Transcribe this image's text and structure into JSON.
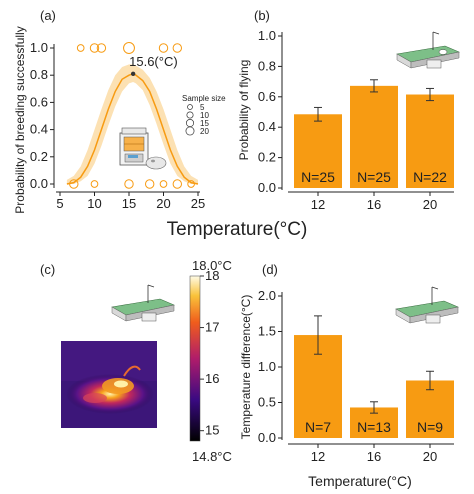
{
  "colors": {
    "orange": "#f79b12",
    "orange_light": "#fbd79a",
    "axis": "#222222"
  },
  "panels": {
    "a": {
      "label": "(a)"
    },
    "b": {
      "label": "(b)"
    },
    "c": {
      "label": "(c)"
    },
    "d": {
      "label": "(d)"
    }
  },
  "shared": {
    "top_xlabel": "Temperature(°C)"
  },
  "colorbar": {
    "max_label": "18.0°C",
    "min_label": "14.8°C",
    "ticks": [
      "18",
      "17",
      "16",
      "15"
    ],
    "tick_values": [
      18,
      17,
      16,
      15
    ],
    "range": [
      14.8,
      18.0
    ]
  },
  "icons": [
    "incubator-icon",
    "flight-mill-icon",
    "thermal-image",
    "flight-mill-icon"
  ],
  "chart_data": [
    {
      "panel": "a",
      "type": "line",
      "ylabel": "Probability of breeding successfully",
      "xlabel": "Temperature(°C)",
      "xlim": [
        5,
        25
      ],
      "ylim": [
        0,
        1
      ],
      "xticks": [
        5,
        10,
        15,
        20,
        25
      ],
      "yticks": [
        "0.0",
        "0.2",
        "0.4",
        "0.6",
        "0.8",
        "1.0"
      ],
      "yticks_values": [
        0.0,
        0.2,
        0.4,
        0.6,
        0.8,
        1.0
      ],
      "peak": {
        "x": 15.6,
        "y": 0.81,
        "label": "15.6(°C)"
      },
      "fit": {
        "x": [
          6,
          7,
          8,
          9,
          10,
          11,
          12,
          13,
          14,
          15,
          15.6,
          16,
          17,
          18,
          19,
          20,
          21,
          22,
          23,
          24,
          25
        ],
        "y": [
          0.0,
          0.01,
          0.05,
          0.13,
          0.25,
          0.4,
          0.55,
          0.68,
          0.77,
          0.8,
          0.81,
          0.8,
          0.76,
          0.68,
          0.55,
          0.4,
          0.25,
          0.13,
          0.05,
          0.01,
          0.0
        ],
        "lower": [
          0.0,
          0.0,
          0.02,
          0.06,
          0.15,
          0.28,
          0.43,
          0.57,
          0.68,
          0.74,
          0.75,
          0.74,
          0.69,
          0.58,
          0.44,
          0.29,
          0.15,
          0.06,
          0.02,
          0.0,
          0.0
        ],
        "upper": [
          0.03,
          0.06,
          0.13,
          0.25,
          0.4,
          0.55,
          0.69,
          0.8,
          0.86,
          0.88,
          0.88,
          0.87,
          0.84,
          0.78,
          0.68,
          0.55,
          0.4,
          0.25,
          0.13,
          0.06,
          0.03
        ]
      },
      "points": [
        {
          "x": 8,
          "y": 1,
          "size": 5
        },
        {
          "x": 10,
          "y": 1,
          "size": 10
        },
        {
          "x": 11,
          "y": 1,
          "size": 10
        },
        {
          "x": 15,
          "y": 1,
          "size": 20
        },
        {
          "x": 20,
          "y": 1,
          "size": 10
        },
        {
          "x": 22,
          "y": 1,
          "size": 10
        },
        {
          "x": 7,
          "y": 0,
          "size": 10
        },
        {
          "x": 10,
          "y": 0,
          "size": 5
        },
        {
          "x": 15,
          "y": 0,
          "size": 10
        },
        {
          "x": 18,
          "y": 0,
          "size": 10
        },
        {
          "x": 20,
          "y": 0,
          "size": 5
        },
        {
          "x": 22,
          "y": 0,
          "size": 10
        },
        {
          "x": 24,
          "y": 0,
          "size": 5
        }
      ],
      "legend": {
        "title": "Sample size",
        "entries": [
          "5",
          "10",
          "15",
          "20"
        ],
        "sizes": [
          5,
          10,
          15,
          20
        ]
      }
    },
    {
      "panel": "b",
      "type": "bar",
      "ylabel": "Probability of flying",
      "categories": [
        "12",
        "16",
        "20"
      ],
      "values": [
        0.485,
        0.672,
        0.615
      ],
      "errors": [
        0.045,
        0.04,
        0.04
      ],
      "bar_labels": [
        "N=25",
        "N=25",
        "N=22"
      ],
      "ylim": [
        0,
        1
      ],
      "yticks": [
        "0.0",
        "0.2",
        "0.4",
        "0.6",
        "0.8",
        "1.0"
      ],
      "yticks_values": [
        0.0,
        0.2,
        0.4,
        0.6,
        0.8,
        1.0
      ]
    },
    {
      "panel": "d",
      "type": "bar",
      "ylabel": "Temperature difference(°C)",
      "xlabel": "Temperature(°C)",
      "categories": [
        "12",
        "16",
        "20"
      ],
      "values": [
        1.45,
        0.43,
        0.81
      ],
      "errors": [
        0.27,
        0.08,
        0.13
      ],
      "bar_labels": [
        "N=7",
        "N=13",
        "N=9"
      ],
      "ylim": [
        0,
        2.0
      ],
      "yticks": [
        "0.0",
        "0.5",
        "1.0",
        "1.5",
        "2.0"
      ],
      "yticks_values": [
        0.0,
        0.5,
        1.0,
        1.5,
        2.0
      ]
    }
  ]
}
